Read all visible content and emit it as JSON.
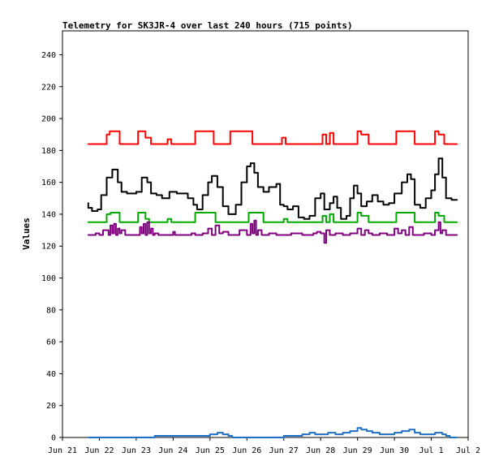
{
  "chart_data": {
    "type": "line",
    "title": "Telemetry for SK3JR-4 over last 240 hours (715 points)",
    "xlabel": "",
    "ylabel": "Values",
    "xlim": [
      0,
      11
    ],
    "ylim": [
      0,
      255
    ],
    "x_tick_labels": [
      "Jun 21",
      "Jun 22",
      "Jun 23",
      "Jun 24",
      "Jun 25",
      "Jun 26",
      "Jun 27",
      "Jun 28",
      "Jun 29",
      "Jun 30",
      "Jul 1",
      "Jul 2"
    ],
    "y_ticks": [
      0,
      20,
      40,
      60,
      80,
      100,
      120,
      140,
      160,
      180,
      200,
      220,
      240
    ],
    "grid": false,
    "legend": "none",
    "series": [
      {
        "color": "#ff0000",
        "x": [
          0.7,
          1.2,
          1.28,
          1.45,
          1.55,
          1.95,
          2.05,
          2.15,
          2.25,
          2.4,
          2.7,
          2.85,
          2.95,
          3.1,
          3.6,
          3.7,
          3.85,
          4.1,
          4.2,
          4.45,
          4.55,
          5.05,
          5.15,
          5.45,
          5.55,
          5.95,
          6.05,
          6.25,
          6.35,
          6.5,
          7.05,
          7.15,
          7.25,
          7.35,
          7.5,
          8.0,
          8.1,
          8.3,
          8.4,
          8.55,
          9.05,
          9.2,
          9.55,
          9.7,
          10.1,
          10.2,
          10.35,
          10.5,
          10.7
        ],
        "y": [
          184,
          184,
          190,
          192,
          192,
          184,
          184,
          192,
          192,
          188,
          184,
          184,
          187,
          184,
          184,
          192,
          192,
          192,
          184,
          184,
          184,
          192,
          192,
          184,
          184,
          184,
          188,
          184,
          184,
          184,
          184,
          190,
          184,
          191,
          184,
          184,
          192,
          190,
          184,
          184,
          184,
          192,
          192,
          184,
          184,
          192,
          190,
          184,
          184
        ]
      },
      {
        "color": "#000000",
        "x": [
          0.7,
          0.8,
          0.95,
          1.05,
          1.2,
          1.35,
          1.5,
          1.6,
          1.75,
          2.0,
          2.15,
          2.3,
          2.4,
          2.55,
          2.7,
          2.9,
          3.1,
          3.3,
          3.4,
          3.55,
          3.65,
          3.8,
          3.95,
          4.05,
          4.2,
          4.35,
          4.5,
          4.7,
          4.85,
          5.0,
          5.1,
          5.2,
          5.3,
          5.45,
          5.6,
          5.8,
          5.9,
          6.0,
          6.1,
          6.25,
          6.4,
          6.55,
          6.7,
          6.85,
          7.0,
          7.1,
          7.25,
          7.35,
          7.45,
          7.55,
          7.7,
          7.8,
          7.9,
          8.0,
          8.1,
          8.25,
          8.4,
          8.55,
          8.7,
          8.85,
          9.0,
          9.2,
          9.35,
          9.45,
          9.55,
          9.7,
          9.85,
          10.0,
          10.1,
          10.2,
          10.3,
          10.4,
          10.55,
          10.7
        ],
        "y": [
          147,
          144,
          142,
          143,
          152,
          163,
          168,
          160,
          154,
          153,
          154,
          163,
          160,
          153,
          152,
          150,
          154,
          153,
          153,
          150,
          146,
          143,
          152,
          160,
          164,
          157,
          145,
          140,
          146,
          160,
          170,
          172,
          166,
          157,
          154,
          157,
          159,
          146,
          145,
          143,
          145,
          138,
          137,
          139,
          150,
          153,
          143,
          147,
          151,
          144,
          137,
          139,
          150,
          158,
          153,
          145,
          148,
          152,
          148,
          146,
          147,
          153,
          160,
          165,
          162,
          146,
          144,
          150,
          155,
          165,
          175,
          163,
          150,
          149
        ]
      },
      {
        "color": "#00aa00",
        "x": [
          0.7,
          1.2,
          1.3,
          1.45,
          1.55,
          1.95,
          2.05,
          2.15,
          2.25,
          2.35,
          2.7,
          2.85,
          2.95,
          3.1,
          3.6,
          3.7,
          3.85,
          4.15,
          4.25,
          4.55,
          5.05,
          5.15,
          5.45,
          5.55,
          6.0,
          6.1,
          6.25,
          6.35,
          7.05,
          7.15,
          7.25,
          7.35,
          7.5,
          8.0,
          8.1,
          8.3,
          8.4,
          9.05,
          9.2,
          9.55,
          9.7,
          10.1,
          10.2,
          10.35,
          10.5,
          10.7
        ],
        "y": [
          135,
          135,
          140,
          141,
          141,
          135,
          135,
          141,
          141,
          137,
          135,
          135,
          137,
          135,
          135,
          141,
          141,
          141,
          135,
          135,
          135,
          141,
          141,
          135,
          135,
          137,
          135,
          135,
          135,
          139,
          135,
          140,
          135,
          135,
          141,
          139,
          135,
          135,
          141,
          141,
          135,
          135,
          141,
          139,
          135,
          135
        ]
      },
      {
        "color": "#800080",
        "x": [
          0.7,
          0.9,
          1.0,
          1.1,
          1.25,
          1.3,
          1.35,
          1.4,
          1.45,
          1.5,
          1.55,
          1.6,
          1.7,
          1.8,
          2.1,
          2.15,
          2.2,
          2.25,
          2.3,
          2.35,
          2.4,
          2.45,
          2.5,
          2.6,
          2.7,
          3.0,
          3.05,
          3.1,
          3.2,
          3.5,
          3.6,
          3.8,
          3.95,
          4.05,
          4.15,
          4.25,
          4.35,
          4.5,
          4.6,
          4.8,
          5.0,
          5.1,
          5.15,
          5.2,
          5.25,
          5.3,
          5.4,
          5.6,
          5.8,
          6.2,
          6.5,
          6.8,
          6.9,
          7.0,
          7.1,
          7.15,
          7.25,
          7.4,
          7.6,
          7.8,
          8.0,
          8.1,
          8.2,
          8.3,
          8.4,
          8.6,
          8.8,
          9.0,
          9.1,
          9.2,
          9.3,
          9.4,
          9.5,
          9.6,
          9.8,
          10.0,
          10.1,
          10.2,
          10.25,
          10.3,
          10.4,
          10.5,
          10.7
        ],
        "y": [
          127,
          127,
          128,
          127,
          130,
          127,
          133,
          128,
          134,
          127,
          131,
          128,
          130,
          127,
          127,
          132,
          128,
          134,
          127,
          135,
          128,
          131,
          127,
          128,
          127,
          127,
          129,
          127,
          127,
          127,
          128,
          127,
          128,
          131,
          127,
          133,
          128,
          129,
          127,
          127,
          130,
          127,
          134,
          128,
          136,
          127,
          130,
          127,
          128,
          127,
          128,
          127,
          128,
          129,
          128,
          122,
          130,
          127,
          128,
          127,
          128,
          131,
          127,
          130,
          128,
          127,
          128,
          127,
          131,
          128,
          130,
          127,
          132,
          127,
          127,
          128,
          127,
          130,
          135,
          128,
          130,
          127,
          127
        ]
      },
      {
        "color": "#1f6fc4",
        "x": [
          0.7,
          1.5,
          2.0,
          2.5,
          3.0,
          3.5,
          4.0,
          4.2,
          4.35,
          4.5,
          4.6,
          5.0,
          5.5,
          6.0,
          6.5,
          6.7,
          6.85,
          7.0,
          7.2,
          7.4,
          7.6,
          7.8,
          8.0,
          8.1,
          8.25,
          8.4,
          8.6,
          8.8,
          9.0,
          9.2,
          9.4,
          9.55,
          9.7,
          9.9,
          10.1,
          10.3,
          10.4,
          10.5,
          10.7
        ],
        "y": [
          0,
          0,
          0,
          0,
          1,
          1,
          1,
          2,
          3,
          2,
          1,
          0,
          0,
          0,
          1,
          2,
          3,
          2,
          2,
          3,
          2,
          3,
          4,
          6,
          5,
          4,
          3,
          2,
          2,
          3,
          4,
          5,
          3,
          2,
          2,
          3,
          2,
          1,
          0
        ]
      }
    ]
  }
}
